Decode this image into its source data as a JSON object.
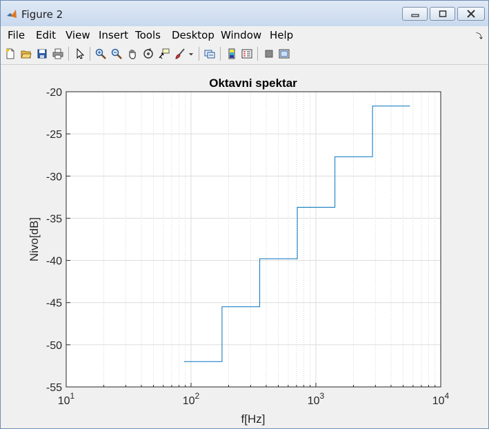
{
  "window": {
    "title": "Figure 2"
  },
  "menu": {
    "items": [
      "File",
      "Edit",
      "View",
      "Insert",
      "Tools",
      "Desktop",
      "Window",
      "Help"
    ]
  },
  "toolbar": {
    "icons": [
      "new-file-icon",
      "open-file-icon",
      "save-icon",
      "print-icon",
      "pointer-icon",
      "zoom-in-icon",
      "zoom-out-icon",
      "pan-hand-icon",
      "rotate-3d-icon",
      "data-cursor-icon",
      "brush-icon",
      "dropdown-arrow-icon",
      "link-plot-icon",
      "colorbar-icon",
      "legend-icon",
      "hide-plot-tools-icon",
      "show-plot-tools-icon"
    ]
  },
  "chart_data": {
    "type": "line",
    "title": "Oktavni spektar",
    "xlabel": "f[Hz]",
    "ylabel": "Nivo[dB]",
    "xscale": "log",
    "xlim": [
      10,
      10000
    ],
    "ylim": [
      -55,
      -20
    ],
    "grid": true,
    "x_ticks": [
      10,
      100,
      1000,
      10000
    ],
    "x_tick_labels": [
      {
        "base": "10",
        "exp": "1"
      },
      {
        "base": "10",
        "exp": "2"
      },
      {
        "base": "10",
        "exp": "3"
      },
      {
        "base": "10",
        "exp": "4"
      }
    ],
    "y_ticks": [
      -20,
      -25,
      -30,
      -35,
      -40,
      -45,
      -50,
      -55
    ],
    "y_tick_labels": [
      "-20",
      "-25",
      "-30",
      "-35",
      "-40",
      "-45",
      "-50",
      "-55"
    ],
    "series": [
      {
        "color": "#0072bd",
        "x": [
          88,
          177,
          177,
          355,
          355,
          710,
          710,
          1420,
          1420,
          2840,
          2840,
          5680
        ],
        "y": [
          -52,
          -52,
          -45.5,
          -45.5,
          -39.8,
          -39.8,
          -33.7,
          -33.7,
          -27.7,
          -27.7,
          -21.7,
          -21.7
        ]
      }
    ]
  }
}
